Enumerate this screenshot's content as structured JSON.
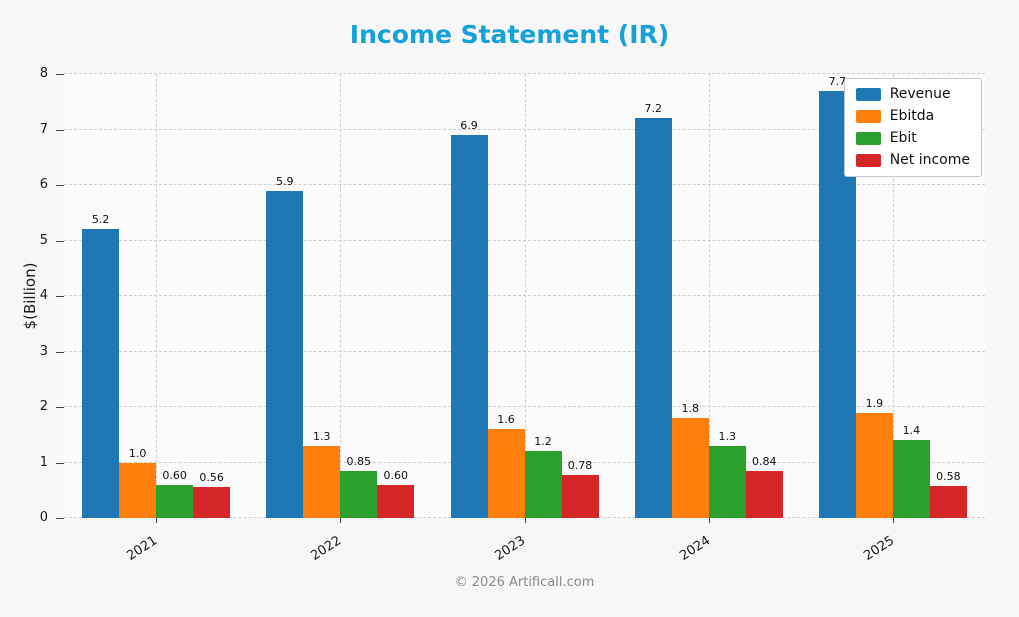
{
  "title": "Income Statement (IR)",
  "ylabel": "$(Billion)",
  "footer": "© 2026 Artificall.com",
  "colors": {
    "title": "#15a2d9",
    "grid": "#cfcfcf",
    "background": "#f7f7f8"
  },
  "legend": {
    "position": "top-right",
    "entries": [
      "Revenue",
      "Ebitda",
      "Ebit",
      "Net income"
    ]
  },
  "chart_data": {
    "type": "bar",
    "title": "Income Statement (IR)",
    "xlabel": "",
    "ylabel": "$(Billion)",
    "ylim": [
      0,
      8
    ],
    "yticks": [
      0,
      1,
      2,
      3,
      4,
      5,
      6,
      7,
      8
    ],
    "grid": "dashed, horizontal at each integer and vertical at each group center",
    "legend_position": "top-right",
    "categories": [
      "2021",
      "2022",
      "2023",
      "2024",
      "2025"
    ],
    "series": [
      {
        "name": "Revenue",
        "color": "#1f77b4",
        "values": [
          5.2,
          5.9,
          6.9,
          7.2,
          7.7
        ],
        "labels": [
          "5.2",
          "5.9",
          "6.9",
          "7.2",
          "7.7"
        ]
      },
      {
        "name": "Ebitda",
        "color": "#ff7f0e",
        "values": [
          1.0,
          1.3,
          1.6,
          1.8,
          1.9
        ],
        "labels": [
          "1.0",
          "1.3",
          "1.6",
          "1.8",
          "1.9"
        ]
      },
      {
        "name": "Ebit",
        "color": "#2ca02c",
        "values": [
          0.6,
          0.85,
          1.2,
          1.3,
          1.4
        ],
        "labels": [
          "0.60",
          "0.85",
          "1.2",
          "1.3",
          "1.4"
        ]
      },
      {
        "name": "Net income",
        "color": "#d62728",
        "values": [
          0.56,
          0.6,
          0.78,
          0.84,
          0.58
        ],
        "labels": [
          "0.56",
          "0.60",
          "0.78",
          "0.84",
          "0.58"
        ]
      }
    ]
  }
}
